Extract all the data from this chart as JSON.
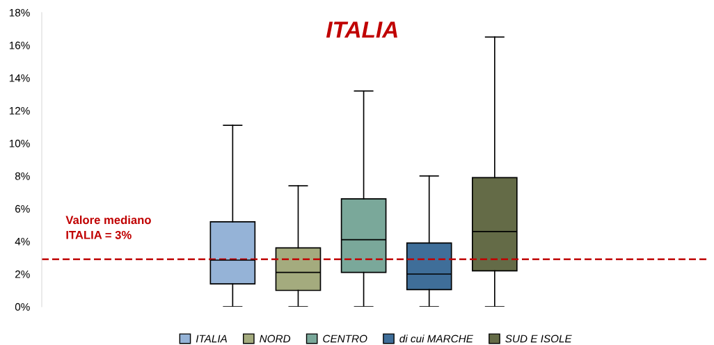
{
  "chart_data": {
    "type": "box",
    "title": "ITALIA",
    "categories": [
      null
    ],
    "series": [
      {
        "name": "ITALIA",
        "color": "#95b3d7",
        "boxes": [
          {
            "low": 0,
            "q1": 1.4,
            "median": 2.85,
            "q3": 5.2,
            "high": 11.1
          }
        ]
      },
      {
        "name": "NORD",
        "color": "#a4ab7e",
        "boxes": [
          {
            "low": 0,
            "q1": 1.0,
            "median": 2.1,
            "q3": 3.6,
            "high": 7.4
          }
        ]
      },
      {
        "name": "CENTRO",
        "color": "#7aa89a",
        "boxes": [
          {
            "low": 0,
            "q1": 2.1,
            "median": 4.1,
            "q3": 6.6,
            "high": 13.2
          }
        ]
      },
      {
        "name": "di cui MARCHE",
        "color": "#3f6e99",
        "boxes": [
          {
            "low": 0,
            "q1": 1.05,
            "median": 2.0,
            "q3": 3.9,
            "high": 8.0
          }
        ]
      },
      {
        "name": "SUD E ISOLE",
        "color": "#646b47",
        "boxes": [
          {
            "low": 0,
            "q1": 2.2,
            "median": 4.6,
            "q3": 7.9,
            "high": 16.5
          }
        ]
      }
    ],
    "ylim": [
      0,
      18
    ],
    "yticks": [
      {
        "value": 0,
        "label": "0%"
      },
      {
        "value": 2,
        "label": "2%"
      },
      {
        "value": 4,
        "label": "4%"
      },
      {
        "value": 6,
        "label": "6%"
      },
      {
        "value": 8,
        "label": "8%"
      },
      {
        "value": 10,
        "label": "10%"
      },
      {
        "value": 12,
        "label": "12%"
      },
      {
        "value": 14,
        "label": "14%"
      },
      {
        "value": 16,
        "label": "16%"
      },
      {
        "value": 18,
        "label": "18%"
      }
    ],
    "ref_lines": [
      {
        "axis": "y",
        "value": 2.9,
        "label": "Valore mediano\nITALIA = 3%",
        "color": "#c00000",
        "line_style": "dashed"
      }
    ],
    "grid": false,
    "legend": "bottom"
  }
}
